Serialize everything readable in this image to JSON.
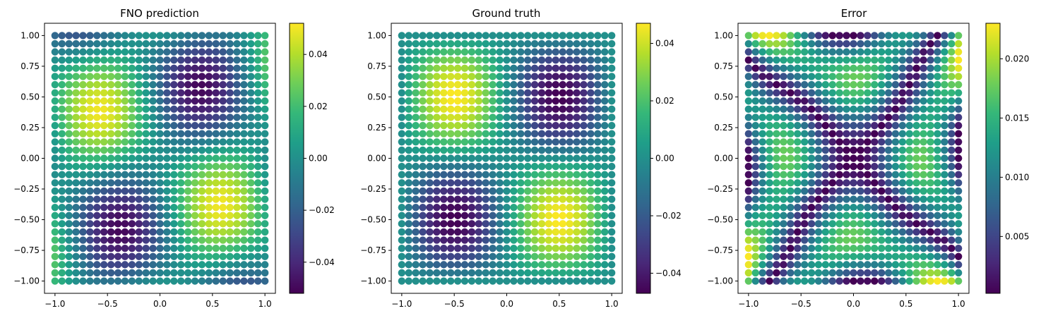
{
  "chart_data": [
    {
      "type": "scatter",
      "title": "FNO prediction",
      "grid": false,
      "xlim": [
        -1.1,
        1.1
      ],
      "ylim": [
        -1.1,
        1.1
      ],
      "xticks": [
        -1.0,
        -0.5,
        0.0,
        0.5,
        1.0
      ],
      "xtick_labels": [
        "−1.0",
        "−0.5",
        "0.0",
        "0.5",
        "1.0"
      ],
      "yticks": [
        1.0,
        0.75,
        0.5,
        0.25,
        0.0,
        -0.25,
        -0.5,
        -0.75,
        -1.0
      ],
      "ytick_labels": [
        "1.00",
        "0.75",
        "0.50",
        "0.25",
        "0.00",
        "−0.25",
        "−0.50",
        "−0.75",
        "−1.00"
      ],
      "grid_points_per_axis": 31,
      "field": "-0.05*sin(pi*(x + 0.2*y)) * sin(pi*(y - 0.2*x))",
      "colorbar": {
        "range": [
          -0.052,
          0.052
        ],
        "ticks": [
          0.04,
          0.02,
          0.0,
          -0.02,
          -0.04
        ],
        "tick_labels": [
          "0.04",
          "0.02",
          "0.00",
          "−0.02",
          "−0.04"
        ]
      }
    },
    {
      "type": "scatter",
      "title": "Ground truth",
      "grid": false,
      "xlim": [
        -1.1,
        1.1
      ],
      "ylim": [
        -1.1,
        1.1
      ],
      "xticks": [
        -1.0,
        -0.5,
        0.0,
        0.5,
        1.0
      ],
      "xtick_labels": [
        "−1.0",
        "−0.5",
        "0.0",
        "0.5",
        "1.0"
      ],
      "yticks": [
        1.0,
        0.75,
        0.5,
        0.25,
        0.0,
        -0.25,
        -0.5,
        -0.75,
        -1.0
      ],
      "ytick_labels": [
        "1.00",
        "0.75",
        "0.50",
        "0.25",
        "0.00",
        "−0.25",
        "−0.50",
        "−0.75",
        "−1.00"
      ],
      "grid_points_per_axis": 31,
      "field": "-0.047*sin(pi*x) * sin(pi*y)",
      "colorbar": {
        "range": [
          -0.047,
          0.047
        ],
        "ticks": [
          0.04,
          0.02,
          0.0,
          -0.02,
          -0.04
        ],
        "tick_labels": [
          "0.04",
          "0.02",
          "0.00",
          "−0.02",
          "−0.04"
        ]
      }
    },
    {
      "type": "scatter",
      "title": "Error",
      "grid": false,
      "xlim": [
        -1.1,
        1.1
      ],
      "ylim": [
        -1.1,
        1.1
      ],
      "xticks": [
        -1.0,
        -0.5,
        0.0,
        0.5,
        1.0
      ],
      "xtick_labels": [
        "−1.0",
        "−0.5",
        "0.0",
        "0.5",
        "1.0"
      ],
      "yticks": [
        1.0,
        0.75,
        0.5,
        0.25,
        0.0,
        -0.25,
        -0.5,
        -0.75,
        -1.0
      ],
      "ytick_labels": [
        "1.00",
        "0.75",
        "0.50",
        "0.25",
        "0.00",
        "−0.25",
        "−0.50",
        "−0.75",
        "−1.00"
      ],
      "grid_points_per_axis": 31,
      "field": "|FNO prediction - Ground truth|",
      "colorbar": {
        "range": [
          0.0002,
          0.023
        ],
        "ticks": [
          0.02,
          0.015,
          0.01,
          0.005
        ],
        "tick_labels": [
          "0.020",
          "0.015",
          "0.010",
          "0.005"
        ]
      }
    }
  ],
  "colormap": "viridis"
}
